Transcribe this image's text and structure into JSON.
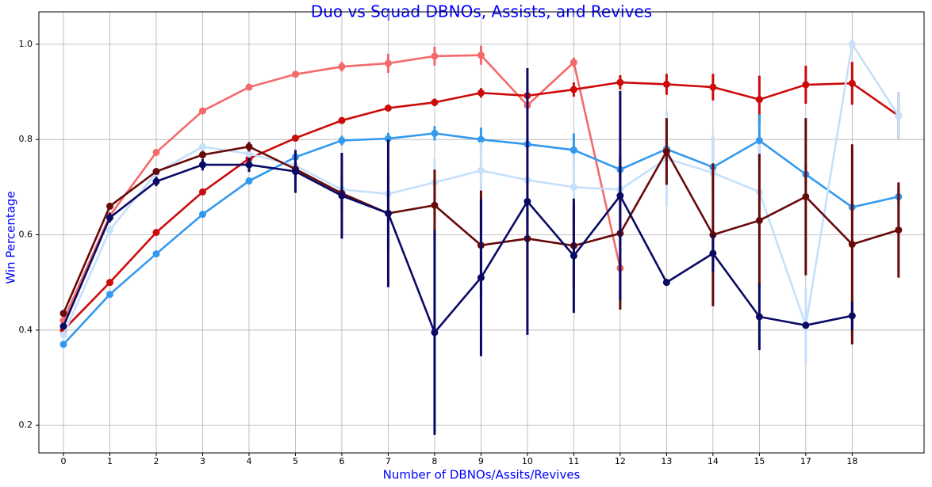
{
  "chart_data": {
    "type": "line",
    "title": "Duo vs Squad DBNOs, Assists, and Revives",
    "x_label": "Number of DBNOs/Assits/Revives",
    "y_label": "Win Percentage",
    "categories": [
      "0",
      "1",
      "2",
      "3",
      "4",
      "5",
      "6",
      "7",
      "8",
      "9",
      "10",
      "11",
      "12",
      "13",
      "14",
      "15",
      "17",
      "18",
      null
    ],
    "xlim": [
      -0.53,
      18.55
    ],
    "ylim": [
      0.142,
      1.068
    ],
    "yticks": [
      0.2,
      0.4,
      0.6,
      0.8,
      {
        "value": 1.0,
        "label": "1.0"
      }
    ],
    "grid": true,
    "series": [
      {
        "color": "#f46a6a",
        "values": [
          0.42,
          0.64,
          0.773,
          0.86,
          0.91,
          0.937,
          0.953,
          0.96,
          0.975,
          0.977,
          0.872,
          0.962,
          0.53,
          null,
          null,
          null,
          null,
          null,
          null
        ],
        "errors": [
          0.005,
          0.005,
          0.005,
          0.005,
          0.005,
          0.005,
          0.01,
          0.02,
          0.02,
          0.02,
          0.02,
          0.01,
          0.02,
          null,
          null,
          null,
          null,
          null,
          null
        ]
      },
      {
        "color": "#cc0a0a",
        "values": [
          0.4,
          0.5,
          0.605,
          0.69,
          0.76,
          0.803,
          0.84,
          0.866,
          0.878,
          0.898,
          0.892,
          0.905,
          0.92,
          0.916,
          0.91,
          0.884,
          0.915,
          0.918,
          0.85
        ],
        "errors": [
          0.005,
          0.005,
          0.005,
          0.005,
          0.005,
          0.005,
          0.005,
          0.005,
          0.008,
          0.01,
          0.015,
          0.015,
          0.015,
          0.022,
          0.028,
          0.05,
          0.04,
          0.045,
          0.05
        ]
      },
      {
        "color": "#3399ee",
        "values": [
          0.37,
          0.475,
          0.56,
          0.643,
          0.713,
          0.763,
          0.798,
          0.802,
          0.813,
          0.8,
          0.79,
          0.778,
          0.737,
          0.78,
          0.742,
          0.798,
          0.727,
          0.658,
          0.68
        ],
        "errors": [
          0.005,
          0.005,
          0.005,
          0.005,
          0.005,
          0.008,
          0.01,
          0.012,
          0.015,
          0.025,
          0.02,
          0.035,
          0.02,
          0.02,
          0.06,
          0.055,
          0.02,
          0.01,
          0.02
        ]
      },
      {
        "color": "#c6e0fa",
        "values": [
          0.39,
          0.61,
          0.73,
          0.785,
          0.77,
          0.745,
          0.695,
          0.686,
          0.71,
          0.735,
          0.715,
          0.7,
          0.695,
          0.76,
          0.73,
          0.69,
          0.41,
          1.0,
          0.85
        ],
        "errors": [
          0.005,
          0.01,
          0.01,
          0.01,
          0.015,
          0.02,
          0.03,
          0.04,
          0.05,
          0.06,
          0.06,
          0.07,
          0.08,
          0.1,
          0.08,
          0.1,
          0.08,
          0.01,
          0.05
        ]
      },
      {
        "color": "#660a0a",
        "values": [
          0.435,
          0.66,
          0.733,
          0.768,
          0.785,
          0.738,
          0.687,
          0.645,
          0.662,
          0.578,
          0.592,
          0.577,
          0.603,
          0.775,
          0.6,
          0.63,
          0.68,
          0.58,
          0.61
        ],
        "errors": [
          0.005,
          0.005,
          0.005,
          0.008,
          0.01,
          0.02,
          0.04,
          0.08,
          0.075,
          0.115,
          0.09,
          0.09,
          0.16,
          0.07,
          0.15,
          0.14,
          0.165,
          0.21,
          0.1
        ]
      },
      {
        "color": "#0a0a66",
        "values": [
          0.408,
          0.636,
          0.712,
          0.747,
          0.747,
          0.733,
          0.682,
          0.645,
          0.395,
          0.51,
          0.67,
          0.556,
          0.682,
          0.5,
          0.561,
          0.428,
          0.41,
          0.43,
          null
        ],
        "errors": [
          0.005,
          0.01,
          0.01,
          0.012,
          0.015,
          0.045,
          0.09,
          0.155,
          0.215,
          0.165,
          0.28,
          0.12,
          0.22,
          0.005,
          0.04,
          0.07,
          0.005,
          0.03,
          null
        ]
      }
    ]
  }
}
